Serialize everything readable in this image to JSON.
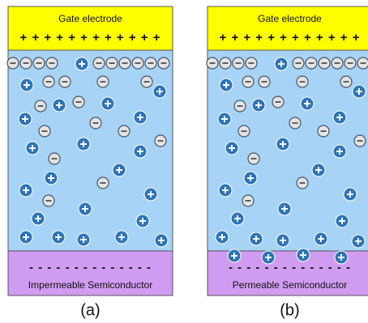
{
  "panels": [
    {
      "gate_label": "Gate electrode",
      "gate_charges": "+ + + + + + + + + + + +",
      "semiconductor_charges": "- - - - - - - - - - - - - -",
      "semiconductor_label": "Impermeable Semiconductor",
      "caption": "(a)"
    },
    {
      "gate_label": "Gate electrode",
      "gate_charges": "+ + + + + + + + + + + +",
      "semiconductor_charges": "- - - - - - - - - - - - - -",
      "semiconductor_label": "Permeable Semiconductor",
      "caption": "(b)"
    }
  ]
}
